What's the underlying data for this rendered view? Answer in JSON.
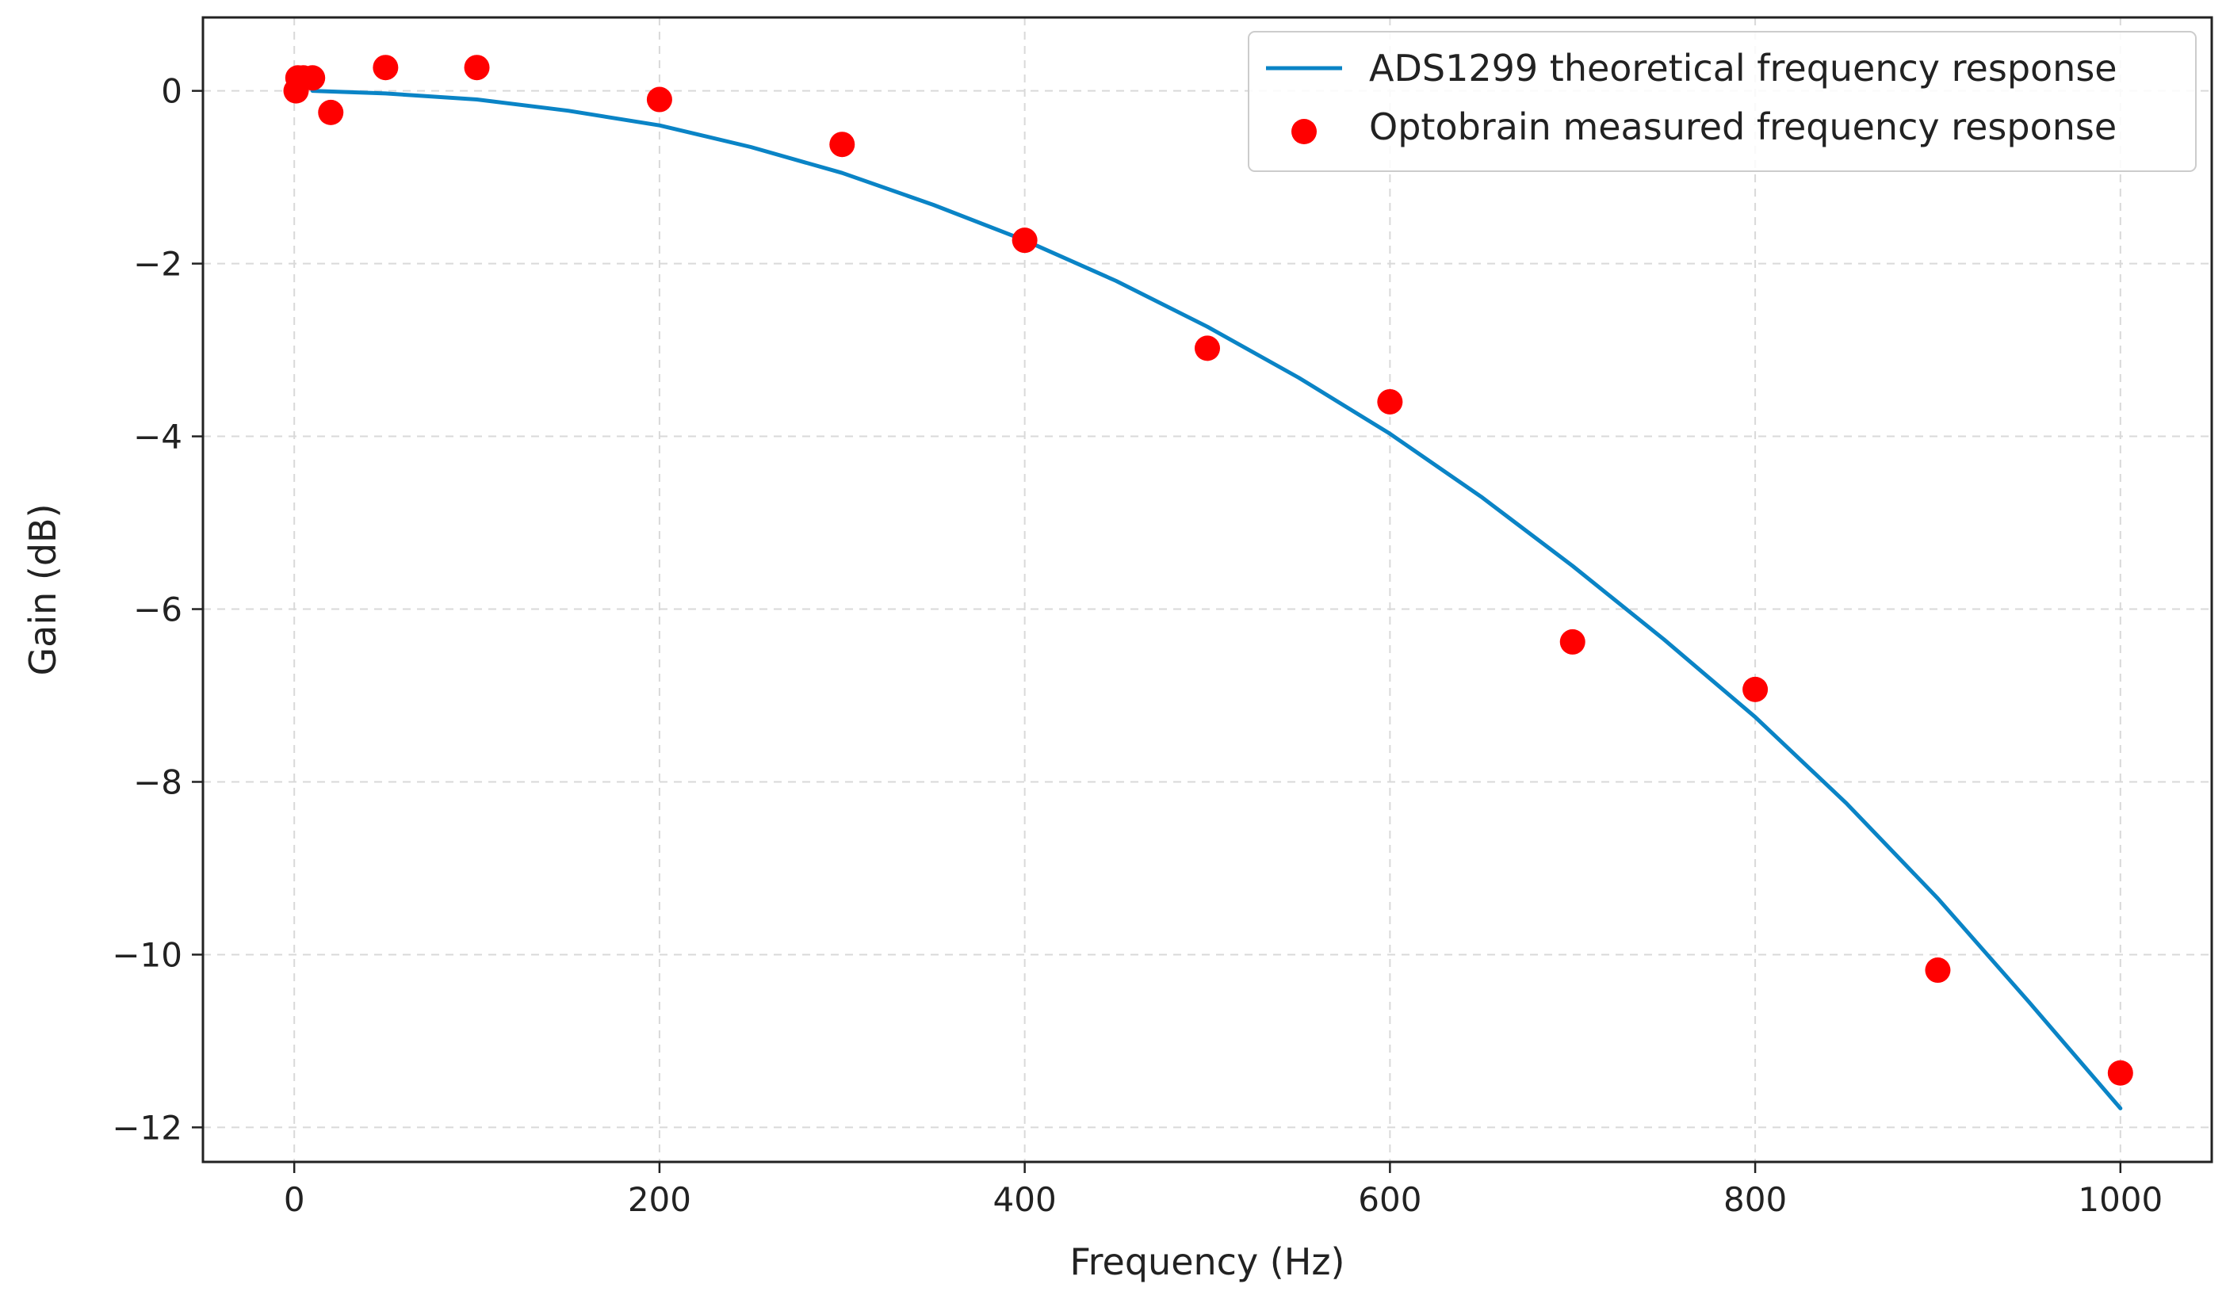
{
  "chart_data": {
    "type": "line",
    "title": "",
    "xlabel": "Frequency (Hz)",
    "ylabel": "Gain (dB)",
    "xlim": [
      -50,
      1050
    ],
    "ylim": [
      -12.4,
      0.85
    ],
    "grid": true,
    "legend_position": "top-right",
    "x_ticks": [
      0,
      200,
      400,
      600,
      800,
      1000
    ],
    "x_tick_labels": [
      "0",
      "200",
      "400",
      "600",
      "800",
      "1000"
    ],
    "y_ticks": [
      0,
      -2,
      -4,
      -6,
      -8,
      -10,
      -12
    ],
    "y_tick_labels": [
      "0",
      "−2",
      "−4",
      "−6",
      "−8",
      "−10",
      "−12"
    ],
    "series": [
      {
        "name": "ADS1299 theoretical frequency response",
        "kind": "line",
        "color": "#0a84c6",
        "x": [
          10,
          50,
          100,
          150,
          200,
          250,
          300,
          350,
          400,
          450,
          500,
          550,
          600,
          650,
          700,
          750,
          800,
          850,
          900,
          950,
          1000
        ],
        "y": [
          0.0,
          -0.03,
          -0.1,
          -0.23,
          -0.4,
          -0.65,
          -0.95,
          -1.32,
          -1.73,
          -2.2,
          -2.73,
          -3.32,
          -3.97,
          -4.7,
          -5.5,
          -6.35,
          -7.25,
          -8.25,
          -9.35,
          -10.55,
          -11.78
        ]
      },
      {
        "name": "Optobrain measured frequency response",
        "kind": "scatter",
        "color": "#ff0000",
        "x": [
          1,
          2,
          5,
          10,
          20,
          50,
          100,
          200,
          300,
          400,
          500,
          600,
          700,
          800,
          900,
          1000
        ],
        "y": [
          0.0,
          0.15,
          0.15,
          0.15,
          -0.25,
          0.27,
          0.27,
          -0.1,
          -0.62,
          -1.73,
          -2.98,
          -3.6,
          -6.38,
          -6.93,
          -10.18,
          -11.37
        ]
      }
    ]
  }
}
